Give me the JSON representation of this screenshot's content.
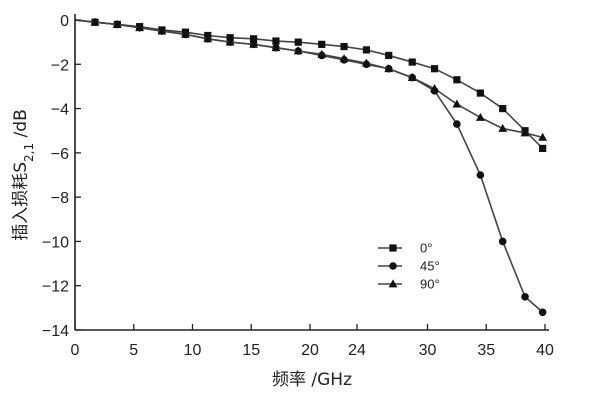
{
  "chart_data": {
    "type": "line",
    "xlabel": "频率 /GHz",
    "ylabel": {
      "prefix": "插入损耗S",
      "subscript": "2,1",
      "suffix": " /dB"
    },
    "xlim": [
      0,
      40
    ],
    "ylim": [
      -14,
      0
    ],
    "x_ticks": [
      {
        "value": 0,
        "label": "0"
      },
      {
        "value": 5,
        "label": "5"
      },
      {
        "value": 10,
        "label": "10"
      },
      {
        "value": 15,
        "label": "15"
      },
      {
        "value": 20,
        "label": "20"
      },
      {
        "value": 24,
        "label": "24"
      },
      {
        "value": 30,
        "label": "30"
      },
      {
        "value": 35,
        "label": "35"
      },
      {
        "value": 40,
        "label": "40"
      }
    ],
    "y_ticks": [
      {
        "value": 0,
        "label": "0"
      },
      {
        "value": -2,
        "label": "−2"
      },
      {
        "value": -4,
        "label": "−4"
      },
      {
        "value": -6,
        "label": "−6"
      },
      {
        "value": -8,
        "label": "−8"
      },
      {
        "value": -10,
        "label": "−10"
      },
      {
        "value": -12,
        "label": "−12"
      },
      {
        "value": -14,
        "label": "−14"
      }
    ],
    "grid": false,
    "legend": {
      "placement": "lower-right"
    },
    "series": [
      {
        "name": "0°",
        "marker": "square",
        "x": [
          0,
          1.7,
          3.6,
          5.5,
          7.4,
          9.4,
          11.3,
          13.2,
          15.2,
          17.1,
          19.0,
          21.0,
          22.9,
          24.8,
          26.7,
          28.7,
          30.6,
          32.5,
          34.5,
          36.4,
          38.3,
          39.8
        ],
        "y": [
          0,
          -0.1,
          -0.2,
          -0.3,
          -0.45,
          -0.55,
          -0.7,
          -0.8,
          -0.85,
          -0.95,
          -1.0,
          -1.1,
          -1.2,
          -1.35,
          -1.6,
          -1.9,
          -2.2,
          -2.7,
          -3.3,
          -4.0,
          -5.0,
          -5.8
        ]
      },
      {
        "name": "45°",
        "marker": "circle",
        "x": [
          0,
          1.7,
          3.6,
          5.5,
          7.4,
          9.4,
          11.3,
          13.2,
          15.2,
          17.1,
          19.0,
          21.0,
          22.9,
          24.8,
          26.7,
          28.7,
          30.6,
          32.5,
          34.5,
          36.4,
          38.3,
          39.8
        ],
        "y": [
          0,
          -0.1,
          -0.2,
          -0.35,
          -0.5,
          -0.65,
          -0.85,
          -1.0,
          -1.1,
          -1.25,
          -1.4,
          -1.6,
          -1.8,
          -2.0,
          -2.2,
          -2.6,
          -3.2,
          -4.7,
          -7.0,
          -10.0,
          -12.5,
          -13.2
        ]
      },
      {
        "name": "90°",
        "marker": "triangle",
        "x": [
          0,
          1.7,
          3.6,
          5.5,
          7.4,
          9.4,
          11.3,
          13.2,
          15.2,
          17.1,
          19.0,
          21.0,
          22.9,
          24.8,
          26.7,
          28.7,
          30.6,
          32.5,
          34.5,
          36.4,
          38.3,
          39.8
        ],
        "y": [
          0,
          -0.1,
          -0.2,
          -0.35,
          -0.5,
          -0.65,
          -0.85,
          -1.0,
          -1.1,
          -1.25,
          -1.4,
          -1.55,
          -1.75,
          -1.95,
          -2.2,
          -2.6,
          -3.1,
          -3.8,
          -4.4,
          -4.9,
          -5.1,
          -5.3
        ]
      }
    ]
  }
}
